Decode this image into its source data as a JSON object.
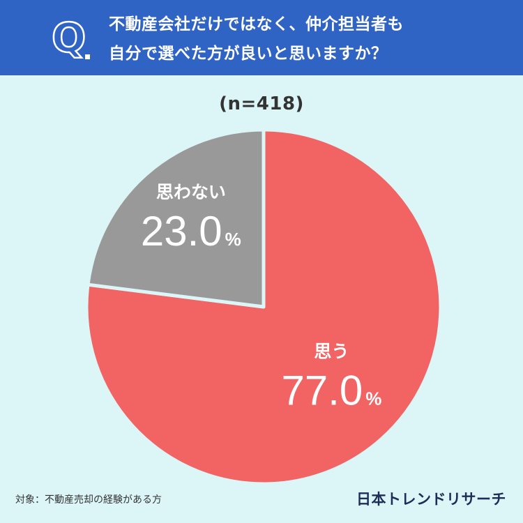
{
  "header": {
    "q_mark": "Q.",
    "question_line1": "不動産会社だけではなく、仲介担当者も",
    "question_line2": "自分で選べた方が良いと思いますか？"
  },
  "sample_size": "(n=418)",
  "footnote": "対象：不動産売却の経験がある方",
  "brand": "日本トレンドリサーチ",
  "colors": {
    "header_bg": "#2f63c4",
    "page_bg": "#dcf6f8",
    "yes": "#f26363",
    "no": "#999999"
  },
  "chart_data": {
    "type": "pie",
    "title": "",
    "unit": "%",
    "slices": [
      {
        "label": "思う",
        "value": 77.0,
        "value_label": "77.0",
        "color": "#f26363"
      },
      {
        "label": "思わない",
        "value": 23.0,
        "value_label": "23.0",
        "color": "#999999"
      }
    ]
  }
}
